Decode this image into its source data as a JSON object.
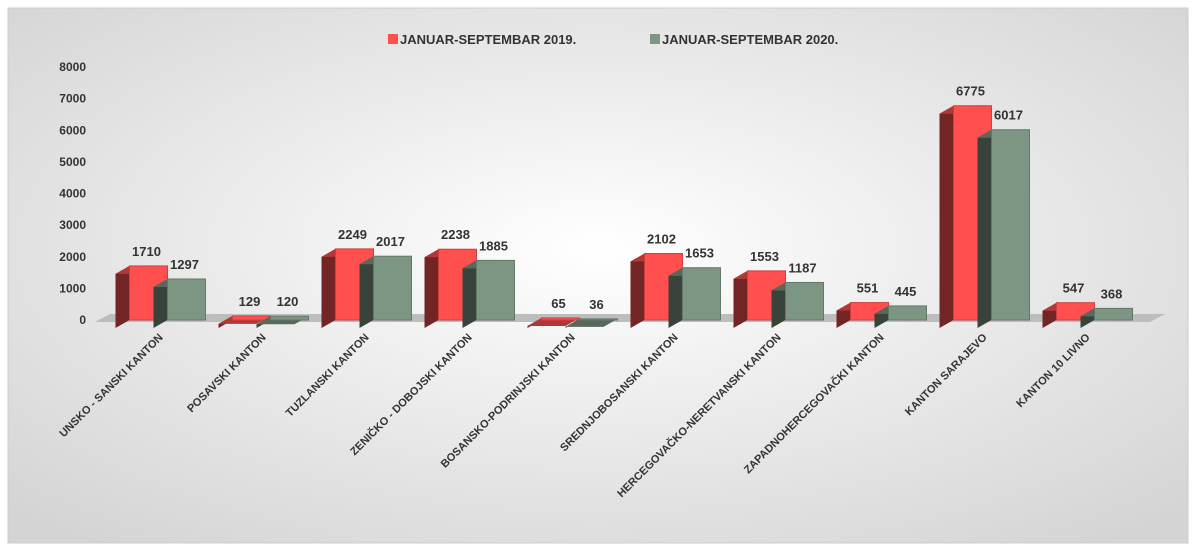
{
  "chart_data": {
    "type": "bar",
    "categories": [
      "UNSKO - SANSKI KANTON",
      "POSAVSKI KANTON",
      "TUZLANSKI KANTON",
      "ZENIČKO - DOBOJSKI KANTON",
      "BOSANSKO-PODRINJSKI KANTON",
      "SREDNJOBOSANSKI KANTON",
      "HERCEGOVAČKO-NERETVANSKI KANTON",
      "ZAPADNOHERCEGOVAČKI KANTON",
      "KANTON SARAJEVO",
      "KANTON 10 LIVNO"
    ],
    "series": [
      {
        "name": "JANUAR-SEPTEMBAR 2019.",
        "color": "#ff4f4f",
        "values": [
          1710,
          129,
          2249,
          2238,
          65,
          2102,
          1553,
          551,
          6775,
          547
        ]
      },
      {
        "name": "JANUAR-SEPTEMBAR 2020.",
        "color": "#7c9683",
        "values": [
          1297,
          120,
          2017,
          1885,
          36,
          1653,
          1187,
          445,
          6017,
          368
        ]
      }
    ],
    "ylim": [
      0,
      8000
    ],
    "yticks": [
      0,
      1000,
      2000,
      3000,
      4000,
      5000,
      6000,
      7000,
      8000
    ],
    "legend": "top"
  }
}
